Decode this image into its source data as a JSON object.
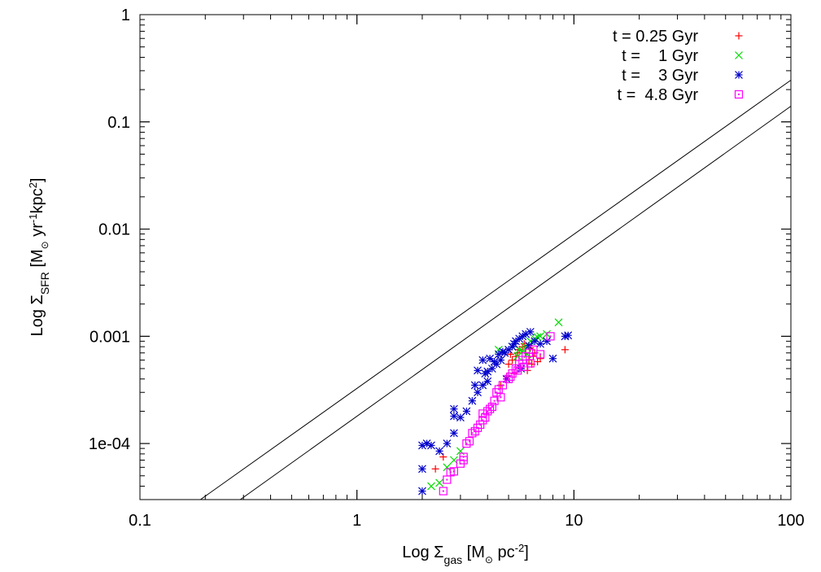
{
  "chart_data": {
    "type": "scatter",
    "scale": "log-log",
    "xlabel": {
      "prefix": "Log ",
      "symbol": "Σ",
      "sub": "gas",
      "bracket_open": " [M",
      "solar_mark": "⊙",
      "unit": "  pc",
      "sup": "-2",
      "bracket_close": "]"
    },
    "ylabel": {
      "prefix": "Log ",
      "symbol": "Σ",
      "sub": "SFR",
      "bracket_open": " [M",
      "solar_mark": "⊙",
      "unit": "  yr",
      "sup1": "-1",
      "unit2": "kpc",
      "sup2": "2",
      "bracket_close": "]"
    },
    "xlim": [
      0.1,
      100
    ],
    "ylim": [
      3e-05,
      1
    ],
    "x_ticks": [
      {
        "value": 0.1,
        "label": "0.1"
      },
      {
        "value": 1,
        "label": "1"
      },
      {
        "value": 10,
        "label": "10"
      },
      {
        "value": 100,
        "label": "100"
      }
    ],
    "y_ticks": [
      {
        "value": 0.0001,
        "label": "1e-04"
      },
      {
        "value": 0.001,
        "label": "0.001"
      },
      {
        "value": 0.01,
        "label": "0.01"
      },
      {
        "value": 0.1,
        "label": "0.1"
      },
      {
        "value": 1,
        "label": "1"
      }
    ],
    "lines": [
      {
        "name": "reference-line-upper",
        "points": [
          [
            0.19,
            3e-05
          ],
          [
            100,
            0.245
          ]
        ]
      },
      {
        "name": "reference-line-lower",
        "points": [
          [
            0.29,
            3e-05
          ],
          [
            100,
            0.14
          ]
        ]
      }
    ],
    "legend_position": "top-right",
    "series": [
      {
        "name": "t = 0.25 Gyr",
        "color": "#ff0000",
        "marker": "plus",
        "points": [
          [
            2.3,
            5.8e-05
          ],
          [
            2.5,
            7.5e-05
          ],
          [
            5.0,
            0.00055
          ],
          [
            5.2,
            0.0006
          ],
          [
            5.4,
            0.00065
          ],
          [
            5.5,
            0.0007
          ],
          [
            5.6,
            0.00075
          ],
          [
            5.8,
            0.0008
          ],
          [
            6.0,
            0.0007
          ],
          [
            6.2,
            0.0006
          ],
          [
            6.4,
            0.00055
          ],
          [
            6.5,
            0.00065
          ],
          [
            6.6,
            0.0007
          ],
          [
            6.8,
            0.00058
          ],
          [
            7.0,
            0.00062
          ],
          [
            5.3,
            0.00045
          ],
          [
            5.7,
            0.0005
          ],
          [
            6.1,
            0.00048
          ],
          [
            9.1,
            0.00075
          ],
          [
            4.9,
            0.00042
          ],
          [
            4.6,
            0.00035
          ],
          [
            5.9,
            0.00085
          ],
          [
            6.3,
            0.00078
          ],
          [
            5.1,
            0.00068
          ]
        ]
      },
      {
        "name": "t =    1 Gyr",
        "color": "#00dd00",
        "marker": "cross",
        "points": [
          [
            2.2,
            4e-05
          ],
          [
            2.4,
            4.3e-05
          ],
          [
            2.6,
            6e-05
          ],
          [
            2.8,
            7e-05
          ],
          [
            3.0,
            8.5e-05
          ],
          [
            5.6,
            0.00075
          ],
          [
            6.0,
            0.0008
          ],
          [
            6.3,
            0.0009
          ],
          [
            6.6,
            0.00095
          ],
          [
            7.0,
            0.001
          ],
          [
            7.5,
            0.00105
          ],
          [
            8.5,
            0.00135
          ],
          [
            5.2,
            0.0008
          ],
          [
            5.8,
            0.00072
          ],
          [
            4.5,
            0.00075
          ],
          [
            6.8,
            0.00098
          ],
          [
            5.5,
            0.00065
          ],
          [
            6.1,
            0.00068
          ]
        ]
      },
      {
        "name": "t =    3 Gyr",
        "color": "#0000cc",
        "marker": "star",
        "points": [
          [
            2.0,
            3.6e-05
          ],
          [
            2.0,
            5.8e-05
          ],
          [
            2.0,
            9.6e-05
          ],
          [
            2.1,
            0.0001
          ],
          [
            2.2,
            9.6e-05
          ],
          [
            2.4,
            8.5e-05
          ],
          [
            2.6,
            0.0001
          ],
          [
            2.8,
            0.000125
          ],
          [
            2.8,
            0.00018
          ],
          [
            3.0,
            0.000175
          ],
          [
            3.2,
            0.0002
          ],
          [
            3.4,
            0.00025
          ],
          [
            3.6,
            0.0003
          ],
          [
            3.8,
            0.00035
          ],
          [
            3.9,
            0.00045
          ],
          [
            4.0,
            0.00047
          ],
          [
            4.2,
            0.0005
          ],
          [
            4.4,
            0.00055
          ],
          [
            4.6,
            0.0006
          ],
          [
            4.8,
            0.0007
          ],
          [
            5.0,
            0.00075
          ],
          [
            5.2,
            0.0008
          ],
          [
            5.4,
            0.0009
          ],
          [
            5.6,
            0.00095
          ],
          [
            5.8,
            0.001
          ],
          [
            6.0,
            0.00105
          ],
          [
            6.3,
            0.0011
          ],
          [
            6.6,
            0.0009
          ],
          [
            7.0,
            0.00085
          ],
          [
            7.5,
            0.0009
          ],
          [
            8.0,
            0.00062
          ],
          [
            9.1,
            0.001
          ],
          [
            9.4,
            0.00102
          ],
          [
            2.8,
            0.00021
          ],
          [
            3.6,
            0.00048
          ],
          [
            3.8,
            0.0006
          ],
          [
            4.1,
            0.00062
          ],
          [
            4.5,
            0.00068
          ],
          [
            4.9,
            0.0004
          ],
          [
            5.3,
            0.00085
          ],
          [
            5.7,
            0.0005
          ],
          [
            6.2,
            0.00082
          ],
          [
            4.0,
            0.00038
          ],
          [
            3.5,
            0.00035
          ],
          [
            4.3,
            0.00058
          ],
          [
            4.7,
            0.00072
          ]
        ]
      },
      {
        "name": "t =  4.8 Gyr",
        "color": "#ff00ff",
        "marker": "box",
        "points": [
          [
            2.5,
            3.6e-05
          ],
          [
            2.6,
            4.6e-05
          ],
          [
            2.7,
            5.4e-05
          ],
          [
            2.8,
            5.5e-05
          ],
          [
            3.0,
            6.5e-05
          ],
          [
            3.1,
            7e-05
          ],
          [
            3.1,
            7.5e-05
          ],
          [
            3.2,
            0.0001
          ],
          [
            3.3,
            0.000105
          ],
          [
            3.4,
            0.000125
          ],
          [
            3.5,
            0.00013
          ],
          [
            3.6,
            0.00014
          ],
          [
            3.7,
            0.00015
          ],
          [
            3.8,
            0.000165
          ],
          [
            3.9,
            0.000175
          ],
          [
            4.0,
            0.0002
          ],
          [
            4.1,
            0.00021
          ],
          [
            4.2,
            0.00022
          ],
          [
            4.3,
            0.00025
          ],
          [
            4.4,
            0.0003
          ],
          [
            4.5,
            0.00032
          ],
          [
            4.7,
            0.00035
          ],
          [
            5.0,
            0.0004
          ],
          [
            5.2,
            0.00045
          ],
          [
            5.4,
            0.0005
          ],
          [
            5.6,
            0.00055
          ],
          [
            5.8,
            0.0006
          ],
          [
            6.0,
            0.00065
          ],
          [
            6.2,
            0.0007
          ],
          [
            6.5,
            0.00075
          ],
          [
            7.0,
            0.00068
          ],
          [
            7.8,
            0.001
          ],
          [
            3.8,
            0.00019
          ],
          [
            4.6,
            0.00027
          ],
          [
            5.1,
            0.00042
          ],
          [
            5.5,
            0.00048
          ],
          [
            5.9,
            0.00052
          ],
          [
            6.3,
            0.00056
          ]
        ]
      }
    ]
  }
}
